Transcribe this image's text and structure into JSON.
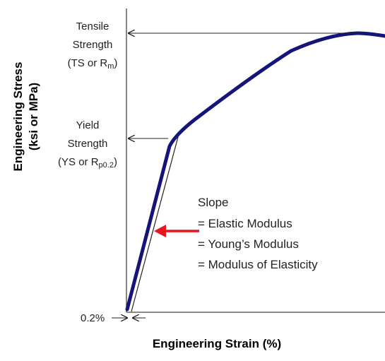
{
  "colors": {
    "curve": "#14147a",
    "arrow_red": "#e8141e",
    "axis": "#444444",
    "text": "#222222"
  },
  "axes": {
    "x_title": "Engineering Strain (%)",
    "y_title_line1": "Engineering Stress",
    "y_title_line2": "(ksi or MPa)"
  },
  "tensile": {
    "line1": "Tensile",
    "line2": "Strength",
    "line3_prefix": "(TS or R",
    "line3_sub": "m",
    "line3_suffix": ")"
  },
  "yield": {
    "line1": "Yield",
    "line2": "Strength",
    "line3_prefix": "(YS or R",
    "line3_sub": "p0.2",
    "line3_suffix": ")"
  },
  "offset_label": "0.2%",
  "slope": {
    "title": "Slope",
    "lines": [
      "= Elastic Modulus",
      "= Young’s Modulus",
      "= Modulus of Elasticity"
    ]
  }
}
